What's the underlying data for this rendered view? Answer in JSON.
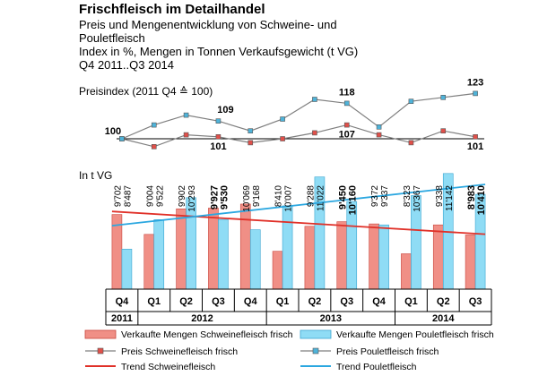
{
  "header": {
    "title": "Frischfleisch im Detailhandel",
    "subtitle_lines": [
      "Preis und Mengenentwicklung von Schweine- und",
      "Pouletfleisch",
      "Index in %, Mengen in Tonnen Verkaufsgewicht (t VG)",
      "Q4 2011..Q3 2014"
    ]
  },
  "chart_data": [
    {
      "type": "line",
      "ylabel": "Preisindex (2011 Q4 ≙ 100)",
      "categories": [
        "Q4 2011",
        "Q1 2012",
        "Q2 2012",
        "Q3 2012",
        "Q4 2012",
        "Q1 2013",
        "Q2 2013",
        "Q3 2013",
        "Q4 2013",
        "Q1 2014",
        "Q2 2014",
        "Q3 2014"
      ],
      "reference_line": 100,
      "series": [
        {
          "name": "Preis Schweinefleisch frisch",
          "color": "#e0504a",
          "values": [
            100,
            96,
            102,
            101,
            98,
            100,
            103,
            107,
            102,
            98,
            104,
            101
          ]
        },
        {
          "name": "Preis Pouletfleisch frisch",
          "color": "#4fb3d9",
          "values": [
            100,
            107,
            112,
            109,
            104,
            110,
            120,
            118,
            106,
            119,
            121,
            123
          ]
        }
      ],
      "point_labels": [
        {
          "text": "100",
          "index": 0,
          "series": 1
        },
        {
          "text": "109",
          "index": 3,
          "series": 1
        },
        {
          "text": "101",
          "index": 3,
          "series": 0
        },
        {
          "text": "118",
          "index": 7,
          "series": 1
        },
        {
          "text": "107",
          "index": 7,
          "series": 0
        },
        {
          "text": "123",
          "index": 11,
          "series": 1
        },
        {
          "text": "101",
          "index": 11,
          "series": 0
        }
      ]
    },
    {
      "type": "bar",
      "ylabel": "In t VG",
      "quarters": [
        "Q4",
        "Q1",
        "Q2",
        "Q3",
        "Q4",
        "Q1",
        "Q2",
        "Q3",
        "Q4",
        "Q1",
        "Q2",
        "Q3"
      ],
      "years": [
        {
          "label": "2011",
          "from": 0,
          "to": 0
        },
        {
          "label": "2012",
          "from": 1,
          "to": 4
        },
        {
          "label": "2013",
          "from": 5,
          "to": 8
        },
        {
          "label": "2014",
          "from": 9,
          "to": 11
        }
      ],
      "series": [
        {
          "name": "Verkaufte Mengen Schweinefleisch frisch",
          "color": "#f08f86",
          "stroke": "#c9463d",
          "values": [
            9702,
            9004,
            9902,
            9927,
            10069,
            8410,
            9288,
            9450,
            9372,
            8323,
            9338,
            8983
          ],
          "labels": [
            "9'702",
            "9'004",
            "9'902",
            "9'927",
            "10'069",
            "8'410",
            "9'288",
            "9'450",
            "9'372",
            "8'323",
            "9'338",
            "8'983"
          ]
        },
        {
          "name": "Verkaufte Mengen Pouletfleisch frisch",
          "color": "#8fdcf5",
          "stroke": "#3aa5d0",
          "values": [
            8487,
            9522,
            10293,
            9530,
            9168,
            10007,
            11022,
            10160,
            9337,
            10367,
            11142,
            10410
          ],
          "labels": [
            "8'487",
            "9'522",
            "10'293",
            "9'530",
            "9'168",
            "10'007",
            "11'022",
            "10'160",
            "9'337",
            "10'367",
            "11'142",
            "10'410"
          ]
        }
      ],
      "bold_label_indices": [
        3,
        7,
        11
      ],
      "trends": [
        {
          "name": "Trend Schweinefleisch",
          "color": "#e03028",
          "start": 9810,
          "end": 9010
        },
        {
          "name": "Trend Pouletfleisch",
          "color": "#2ba7e0",
          "start": 9310,
          "end": 10760
        }
      ]
    }
  ],
  "legend": [
    {
      "label": "Verkaufte Mengen Schweinefleisch frisch",
      "kind": "box",
      "color": "#f08f86",
      "stroke": "#c9463d"
    },
    {
      "label": "Verkaufte Mengen Pouletfleisch frisch",
      "kind": "box",
      "color": "#8fdcf5",
      "stroke": "#3aa5d0"
    },
    {
      "label": "Preis Schweinefleisch frisch",
      "kind": "marker",
      "color": "#e0504a"
    },
    {
      "label": "Preis Pouletfleisch frisch",
      "kind": "marker",
      "color": "#4fb3d9"
    },
    {
      "label": "Trend Schweinefleisch",
      "kind": "line",
      "color": "#e03028"
    },
    {
      "label": "Trend Pouletfleisch",
      "kind": "line",
      "color": "#2ba7e0"
    }
  ]
}
